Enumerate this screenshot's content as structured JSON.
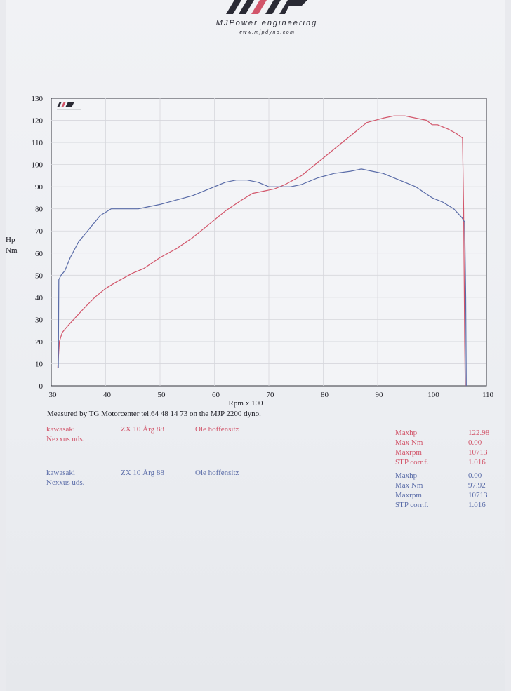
{
  "header": {
    "brand": "MJPower engineering",
    "url": "www.mjpdyno.com"
  },
  "measured_note": "Measured by TG Motorcenter tel.64 48 14 73 on the MJP 2200 dyno.",
  "runs": [
    {
      "color": "#d2556a",
      "make": "kawasaki",
      "model": "ZX 10 Årg 88",
      "owner": "Ole hoffensitz",
      "shop": "Nexxus uds.",
      "stats": [
        {
          "label": "Maxhp",
          "value": "122.98"
        },
        {
          "label": "Max Nm",
          "value": "0.00"
        },
        {
          "label": "Maxrpm",
          "value": "10713"
        },
        {
          "label": "STP corr.f.",
          "value": "1.016"
        }
      ]
    },
    {
      "color": "#5a6ca8",
      "make": "kawasaki",
      "model": "ZX 10 Årg 88",
      "owner": "Ole hoffensitz",
      "shop": "Nexxus uds.",
      "stats": [
        {
          "label": "Maxhp",
          "value": "0.00"
        },
        {
          "label": "Max Nm",
          "value": "97.92"
        },
        {
          "label": "Maxrpm",
          "value": "10713"
        },
        {
          "label": "STP corr.f.",
          "value": "1.016"
        }
      ]
    }
  ],
  "chart_data": {
    "type": "line",
    "xlabel": "Rpm x 100",
    "ylabel": "Hp\nNm",
    "xlim": [
      30,
      110
    ],
    "ylim": [
      0,
      130
    ],
    "x_ticks": [
      30,
      40,
      50,
      60,
      70,
      80,
      90,
      100,
      110
    ],
    "y_ticks": [
      0,
      10,
      20,
      30,
      40,
      50,
      60,
      70,
      80,
      90,
      100,
      110,
      120,
      130
    ],
    "grid": true,
    "series": [
      {
        "color": "#d2556a",
        "points": [
          [
            31.2,
            8
          ],
          [
            31.5,
            20
          ],
          [
            32,
            24
          ],
          [
            33,
            27
          ],
          [
            34.5,
            31
          ],
          [
            36,
            35
          ],
          [
            38,
            40
          ],
          [
            40,
            44
          ],
          [
            42,
            47
          ],
          [
            45,
            51
          ],
          [
            47,
            53
          ],
          [
            50,
            58
          ],
          [
            53,
            62
          ],
          [
            56,
            67
          ],
          [
            59,
            73
          ],
          [
            62,
            79
          ],
          [
            65,
            84
          ],
          [
            67,
            87
          ],
          [
            69,
            88
          ],
          [
            71,
            89
          ],
          [
            73,
            91
          ],
          [
            76,
            95
          ],
          [
            79,
            101
          ],
          [
            82,
            107
          ],
          [
            85,
            113
          ],
          [
            88,
            119
          ],
          [
            91,
            121
          ],
          [
            93,
            122
          ],
          [
            95,
            122
          ],
          [
            97,
            121
          ],
          [
            99,
            120
          ],
          [
            100,
            118
          ],
          [
            101,
            118
          ],
          [
            103,
            116
          ],
          [
            104.5,
            114
          ],
          [
            105.6,
            112
          ],
          [
            105.8,
            80
          ],
          [
            106,
            20
          ],
          [
            106.1,
            0
          ]
        ]
      },
      {
        "color": "#5a6ca8",
        "points": [
          [
            31.3,
            8
          ],
          [
            31.4,
            48
          ],
          [
            31.8,
            50
          ],
          [
            32.5,
            52
          ],
          [
            33.5,
            58
          ],
          [
            35,
            65
          ],
          [
            37,
            71
          ],
          [
            39,
            77
          ],
          [
            41,
            80
          ],
          [
            43,
            80
          ],
          [
            46,
            80
          ],
          [
            48,
            81
          ],
          [
            50,
            82
          ],
          [
            53,
            84
          ],
          [
            56,
            86
          ],
          [
            59,
            89
          ],
          [
            62,
            92
          ],
          [
            64,
            93
          ],
          [
            66,
            93
          ],
          [
            68,
            92
          ],
          [
            70,
            90
          ],
          [
            72,
            90
          ],
          [
            74,
            90
          ],
          [
            76,
            91
          ],
          [
            79,
            94
          ],
          [
            82,
            96
          ],
          [
            85,
            97
          ],
          [
            87,
            98
          ],
          [
            89,
            97
          ],
          [
            91,
            96
          ],
          [
            94,
            93
          ],
          [
            97,
            90
          ],
          [
            100,
            85
          ],
          [
            102,
            83
          ],
          [
            104,
            80
          ],
          [
            105.5,
            76
          ],
          [
            106,
            74
          ],
          [
            106.2,
            40
          ],
          [
            106.3,
            0
          ]
        ]
      }
    ]
  }
}
